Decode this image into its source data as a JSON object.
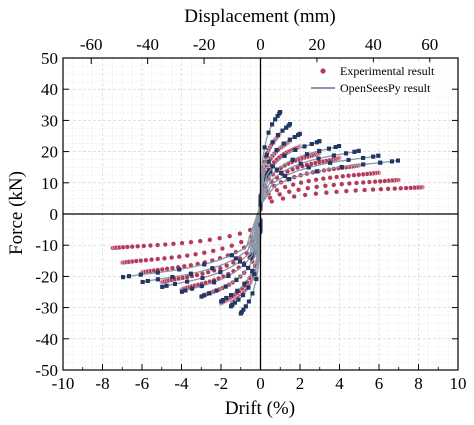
{
  "chart_data": {
    "type": "line",
    "xlabel": "Drift (%)",
    "ylabel": "Force (kN)",
    "top_xlabel": "Displacement (mm)",
    "xlim": [
      -10,
      10
    ],
    "ylim": [
      -50,
      50
    ],
    "top_xlim": [
      -70,
      70
    ],
    "x_ticks": [
      -10,
      -8,
      -6,
      -4,
      -2,
      0,
      2,
      4,
      6,
      8,
      10
    ],
    "y_ticks": [
      -50,
      -40,
      -30,
      -20,
      -10,
      0,
      10,
      20,
      30,
      40,
      50
    ],
    "top_ticks": [
      -60,
      -40,
      -20,
      0,
      20,
      40,
      60
    ],
    "grid": true,
    "zero_axes": true,
    "legend_position": "top-right",
    "colors": {
      "experimental": "#b23a5a",
      "opensees": "#8c97a8",
      "opensees_marker": "#1f3864"
    },
    "series": [
      {
        "name": "Experimental result",
        "style": "markers",
        "loops": [
          {
            "amp_pos": 0.5,
            "amp_neg": -0.5,
            "f_pos": 17,
            "f_neg": -17
          },
          {
            "amp_pos": 1.0,
            "amp_neg": -1.0,
            "f_pos": 33,
            "f_neg": -33
          },
          {
            "amp_pos": 1.5,
            "amp_neg": -1.5,
            "f_pos": 30,
            "f_neg": -36
          },
          {
            "amp_pos": 2.0,
            "amp_neg": -2.0,
            "f_pos": 28,
            "f_neg": -37
          },
          {
            "amp_pos": 3.0,
            "amp_neg": -3.0,
            "f_pos": 25,
            "f_neg": -34
          },
          {
            "amp_pos": 4.0,
            "amp_neg": -4.0,
            "f_pos": 23,
            "f_neg": -31
          },
          {
            "amp_pos": 5.0,
            "amp_neg": -5.0,
            "f_pos": 20,
            "f_neg": -28
          },
          {
            "amp_pos": 6.0,
            "amp_neg": -6.0,
            "f_pos": 17,
            "f_neg": -24
          },
          {
            "amp_pos": 7.0,
            "amp_neg": -7.0,
            "f_pos": 14,
            "f_neg": -20
          },
          {
            "amp_pos": 8.2,
            "amp_neg": -7.5,
            "f_pos": 11,
            "f_neg": -14
          }
        ]
      },
      {
        "name": "OpenSeesPy result",
        "style": "line-with-markers",
        "loops": [
          {
            "amp_pos": 0.5,
            "amp_neg": -0.5,
            "f_pos": 18,
            "f_neg": -18
          },
          {
            "amp_pos": 1.0,
            "amp_neg": -1.0,
            "f_pos": 42,
            "f_neg": -41
          },
          {
            "amp_pos": 1.5,
            "amp_neg": -1.5,
            "f_pos": 37,
            "f_neg": -38
          },
          {
            "amp_pos": 2.0,
            "amp_neg": -2.0,
            "f_pos": 33,
            "f_neg": -36
          },
          {
            "amp_pos": 3.0,
            "amp_neg": -3.0,
            "f_pos": 30,
            "f_neg": -34
          },
          {
            "amp_pos": 4.0,
            "amp_neg": -4.0,
            "f_pos": 28,
            "f_neg": -32
          },
          {
            "amp_pos": 5.0,
            "amp_neg": -5.0,
            "f_pos": 26,
            "f_neg": -30
          },
          {
            "amp_pos": 6.0,
            "amp_neg": -6.0,
            "f_pos": 24,
            "f_neg": -28
          },
          {
            "amp_pos": 7.0,
            "amp_neg": -7.0,
            "f_pos": 22,
            "f_neg": -26
          }
        ]
      }
    ]
  }
}
